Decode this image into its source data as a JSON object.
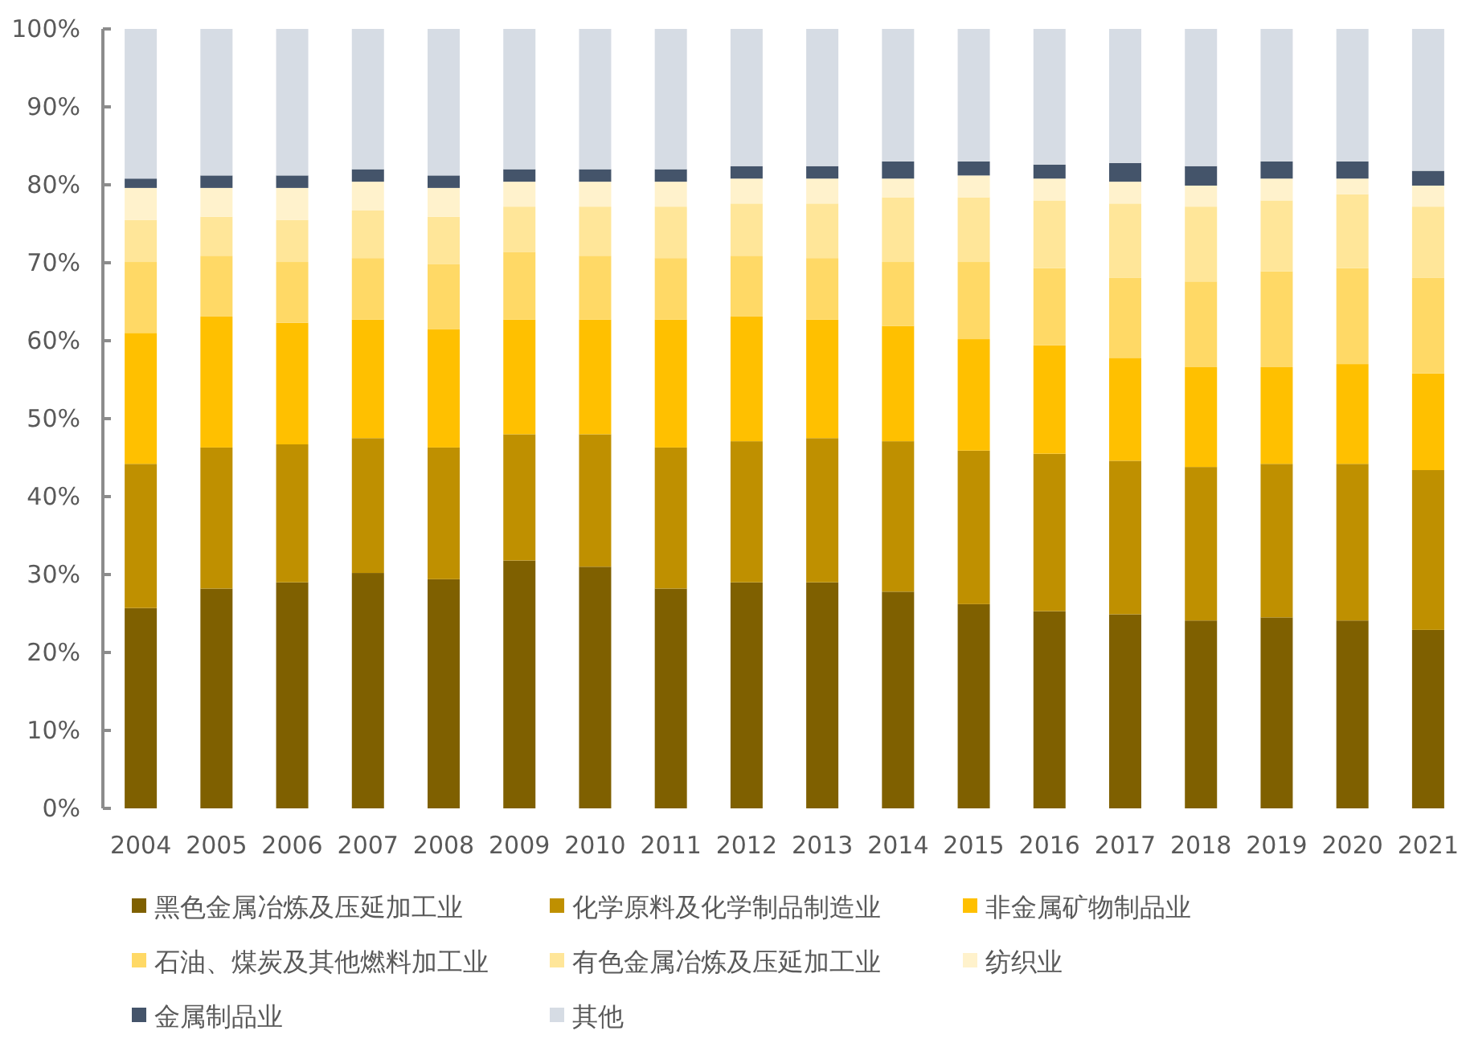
{
  "chart_data": {
    "type": "bar",
    "stacked": true,
    "legend": "bottom",
    "grid": false,
    "categories": [
      "2004",
      "2005",
      "2006",
      "2007",
      "2008",
      "2009",
      "2010",
      "2011",
      "2012",
      "2013",
      "2014",
      "2015",
      "2016",
      "2017",
      "2018",
      "2019",
      "2020",
      "2021"
    ],
    "ylim": [
      0,
      100
    ],
    "yticks": [
      {
        "value": 0,
        "label": "0%"
      },
      {
        "value": 10,
        "label": "10%"
      },
      {
        "value": 20,
        "label": "20%"
      },
      {
        "value": 30,
        "label": "30%"
      },
      {
        "value": 40,
        "label": "40%"
      },
      {
        "value": 50,
        "label": "50%"
      },
      {
        "value": 60,
        "label": "60%"
      },
      {
        "value": 70,
        "label": "70%"
      },
      {
        "value": 80,
        "label": "80%"
      },
      {
        "value": 90,
        "label": "90%"
      },
      {
        "value": 100,
        "label": "100%"
      }
    ],
    "series": [
      {
        "name": "黑色金属冶炼及压延加工业",
        "color": "#7f6000",
        "values": [
          25.7,
          28.2,
          29.0,
          30.2,
          29.4,
          31.8,
          31.0,
          28.2,
          29.0,
          29.0,
          27.8,
          26.2,
          25.3,
          24.9,
          24.1,
          24.5,
          24.1,
          22.9
        ]
      },
      {
        "name": "化学原料及化学制品制造业",
        "color": "#bf9000",
        "values": [
          18.5,
          18.1,
          17.7,
          17.3,
          16.9,
          16.2,
          17.0,
          18.1,
          18.1,
          18.5,
          19.3,
          19.7,
          20.2,
          19.7,
          19.7,
          19.7,
          20.1,
          20.5
        ]
      },
      {
        "name": "非金属矿物制品业",
        "color": "#ffc000",
        "values": [
          16.8,
          16.8,
          15.6,
          15.2,
          15.2,
          14.7,
          14.7,
          16.4,
          16.0,
          15.2,
          14.8,
          14.3,
          13.9,
          13.2,
          12.8,
          12.4,
          12.8,
          12.4
        ]
      },
      {
        "name": "石油、煤炭及其他燃料加工业",
        "color": "#ffd966",
        "values": [
          9.1,
          7.8,
          7.8,
          7.9,
          8.3,
          8.7,
          8.2,
          7.9,
          7.8,
          7.9,
          8.2,
          9.9,
          9.9,
          10.3,
          11.0,
          12.3,
          12.3,
          12.3
        ]
      },
      {
        "name": "有色金属冶炼及压延加工业",
        "color": "#ffe699",
        "values": [
          5.4,
          5.0,
          5.4,
          6.1,
          6.1,
          5.8,
          6.3,
          6.6,
          6.7,
          7.0,
          8.3,
          8.3,
          8.7,
          9.5,
          9.6,
          9.1,
          9.5,
          9.1
        ]
      },
      {
        "name": "纺织业",
        "color": "#fff2cc",
        "values": [
          4.1,
          3.7,
          4.1,
          3.7,
          3.7,
          3.2,
          3.2,
          3.2,
          3.2,
          3.2,
          2.4,
          2.8,
          2.8,
          2.8,
          2.7,
          2.8,
          2.0,
          2.7
        ]
      },
      {
        "name": "金属制品业",
        "color": "#44546a",
        "values": [
          1.2,
          1.6,
          1.6,
          1.6,
          1.6,
          1.6,
          1.6,
          1.6,
          1.6,
          1.6,
          2.2,
          1.8,
          1.8,
          2.4,
          2.5,
          2.2,
          2.2,
          1.9
        ]
      },
      {
        "name": "其他",
        "color": "#d6dce4",
        "values": [
          19.2,
          18.8,
          18.8,
          18.0,
          18.8,
          18.0,
          18.0,
          18.0,
          17.6,
          17.6,
          17.0,
          17.0,
          17.4,
          17.2,
          17.6,
          17.0,
          17.0,
          18.2
        ]
      }
    ]
  }
}
